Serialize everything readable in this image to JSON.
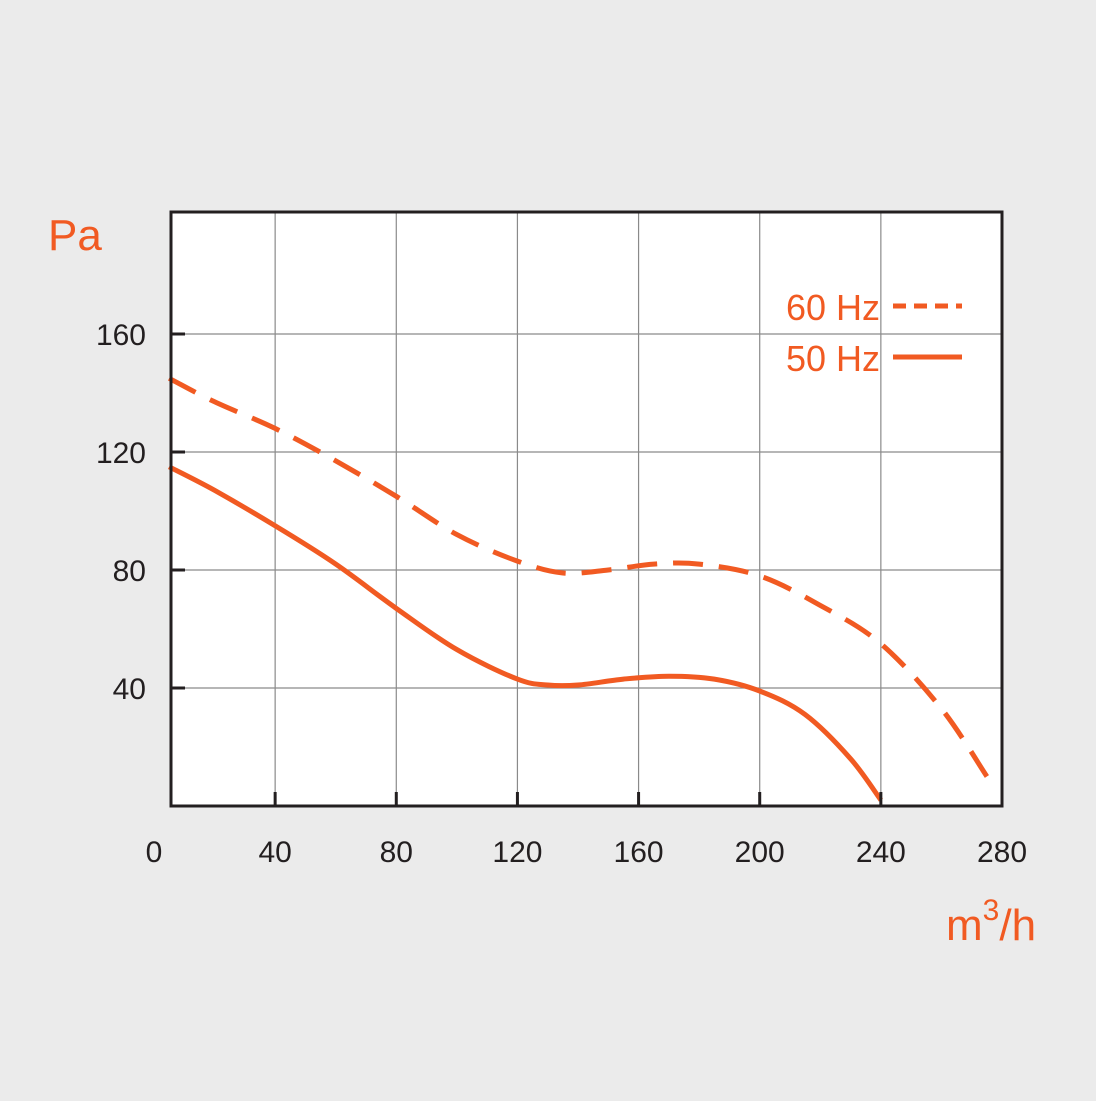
{
  "chart_data": {
    "type": "line",
    "ylabel": "Pa",
    "xlabel_base": "m",
    "xlabel_sup": "3",
    "xlabel_tail": "/h",
    "xlim": [
      0,
      280
    ],
    "ylim": [
      0,
      200
    ],
    "x_ticks": [
      "0",
      "40",
      "80",
      "120",
      "160",
      "200",
      "240",
      "280"
    ],
    "y_ticks": [
      "40",
      "80",
      "120",
      "160"
    ],
    "grid": true,
    "legend_position": "top-right",
    "accent_color": "#f15a22",
    "series": [
      {
        "name": "60 Hz",
        "style": "dashed",
        "x": [
          5,
          20,
          40,
          60,
          80,
          100,
          120,
          135,
          150,
          165,
          180,
          200,
          220,
          240,
          260,
          275
        ],
        "y": [
          145,
          137,
          128,
          117,
          105,
          92,
          83,
          79,
          80,
          82,
          82,
          78,
          68,
          55,
          33,
          10
        ]
      },
      {
        "name": "50 Hz",
        "style": "solid",
        "x": [
          5,
          20,
          40,
          60,
          80,
          100,
          120,
          130,
          140,
          155,
          170,
          185,
          200,
          215,
          230,
          240
        ],
        "y": [
          115,
          107,
          95,
          82,
          67,
          53,
          43,
          41,
          41,
          43,
          44,
          43,
          39,
          31,
          16,
          2
        ]
      }
    ]
  }
}
